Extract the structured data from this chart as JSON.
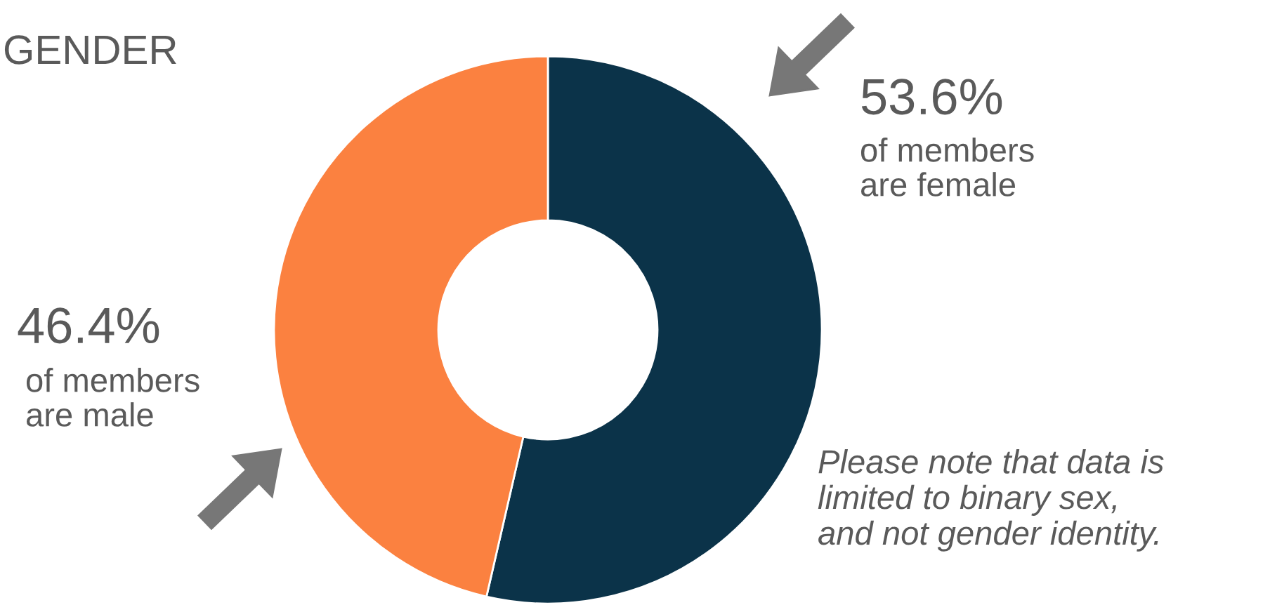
{
  "chart_data": {
    "type": "donut",
    "title": "GENDER",
    "categories": [
      "of members\nare female",
      "of members\nare male"
    ],
    "values": [
      53.6,
      46.4
    ],
    "value_labels": [
      "53.6%",
      "46.4%"
    ],
    "colors": [
      "#0b3349",
      "#fb8140"
    ],
    "annotations": [
      "Please note that data is\nlimited to binary sex,\nand not gender identity."
    ]
  }
}
